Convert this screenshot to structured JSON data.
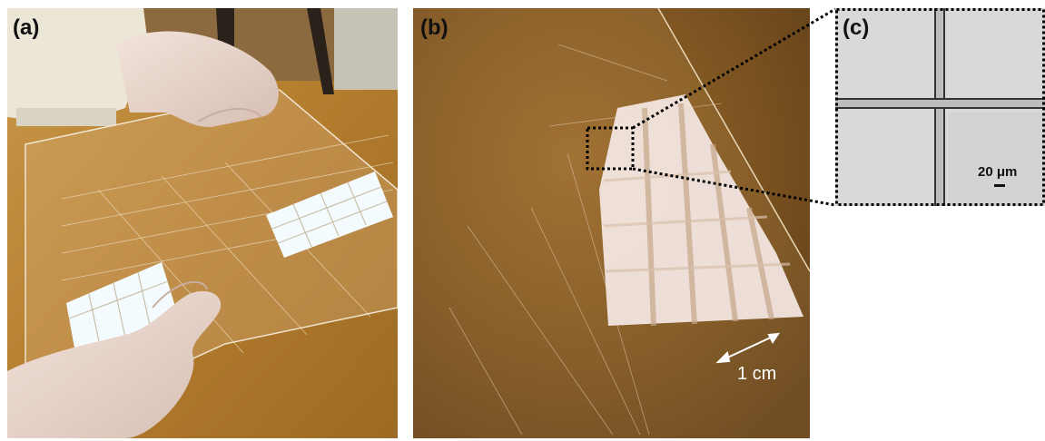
{
  "panels": {
    "a": {
      "label": "(a)"
    },
    "b": {
      "label": "(b)",
      "scale_bar": "1 cm"
    },
    "c": {
      "label": "(c)",
      "scale_bar": "20 μm"
    }
  },
  "colors": {
    "wood": "#b88433",
    "wood_dark": "#6e4a1c",
    "glove": "#e9d6cd",
    "light": "#f4fbff",
    "micro_bg": "#d9d9d9"
  }
}
